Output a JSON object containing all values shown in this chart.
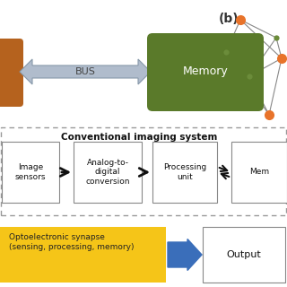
{
  "bg_color": "#ffffff",
  "title_b": "(b)",
  "bus_label": "BUS",
  "memory_label": "Memory",
  "memory_color": "#5a7a2a",
  "bus_color": "#b0bccc",
  "cpu_color": "#b5621e",
  "section_title": "Conventional imaging system",
  "box_edge": "#888888",
  "output_label": "Output",
  "synapse_label": "Optoelectronic synapse\n(sensing, processing, memory)",
  "synapse_color": "#F5C518",
  "arrow_color": "#3a6eba",
  "node_orange": "#E8732A",
  "node_green_dark": "#5a7a2a",
  "node_green_small": "#6B8C3A",
  "edge_color": "#888888",
  "black": "#111111",
  "gray_text": "#444444"
}
